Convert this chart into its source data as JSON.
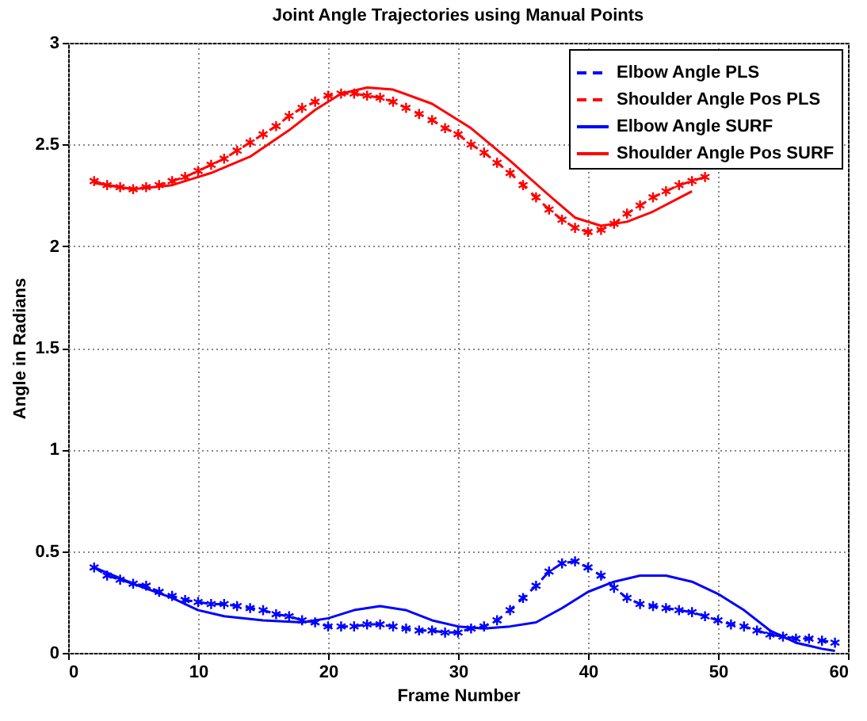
{
  "chart_data": {
    "type": "line",
    "title": "Joint Angle Trajectories using Manual Points",
    "xlabel": "Frame Number",
    "ylabel": "Angle in Radians",
    "xlim": [
      0,
      60
    ],
    "xticks": [
      0,
      10,
      20,
      30,
      40,
      50,
      60
    ],
    "ylim": [
      0,
      3
    ],
    "yticks": [
      0,
      0.5,
      1,
      1.5,
      2,
      2.5,
      3
    ],
    "grid": true,
    "legend": "top right",
    "series": [
      {
        "name": "Elbow Angle PLS",
        "color": "#0000ff",
        "line_style": "dashed",
        "marker": "cross",
        "x": [
          2,
          3,
          4,
          5,
          6,
          7,
          8,
          9,
          10,
          11,
          12,
          13,
          14,
          15,
          16,
          17,
          18,
          19,
          20,
          21,
          22,
          23,
          24,
          25,
          26,
          27,
          28,
          29,
          30,
          31,
          32,
          33,
          34,
          35,
          36,
          37,
          38,
          39,
          40,
          41,
          42,
          43,
          44,
          45,
          46,
          47,
          48,
          49,
          50,
          51,
          52,
          53,
          54,
          55,
          56,
          57,
          58,
          59
        ],
        "values": [
          0.42,
          0.38,
          0.36,
          0.34,
          0.33,
          0.3,
          0.28,
          0.26,
          0.25,
          0.24,
          0.24,
          0.23,
          0.22,
          0.21,
          0.19,
          0.18,
          0.16,
          0.15,
          0.13,
          0.13,
          0.13,
          0.14,
          0.14,
          0.13,
          0.12,
          0.11,
          0.11,
          0.1,
          0.1,
          0.12,
          0.13,
          0.16,
          0.21,
          0.27,
          0.33,
          0.4,
          0.44,
          0.45,
          0.42,
          0.38,
          0.32,
          0.27,
          0.24,
          0.23,
          0.22,
          0.21,
          0.2,
          0.18,
          0.16,
          0.14,
          0.13,
          0.11,
          0.09,
          0.08,
          0.07,
          0.07,
          0.06,
          0.05
        ]
      },
      {
        "name": "Shoulder Angle Pos PLS",
        "color": "#ff0000",
        "line_style": "dashed",
        "marker": "cross",
        "x": [
          2,
          3,
          4,
          5,
          6,
          7,
          8,
          9,
          10,
          11,
          12,
          13,
          14,
          15,
          16,
          17,
          18,
          19,
          20,
          21,
          22,
          23,
          24,
          25,
          26,
          27,
          28,
          29,
          30,
          31,
          32,
          33,
          34,
          35,
          36,
          37,
          38,
          39,
          40,
          41,
          42,
          43,
          44,
          45,
          46,
          47,
          48,
          49
        ],
        "values": [
          2.32,
          2.3,
          2.29,
          2.28,
          2.29,
          2.3,
          2.32,
          2.34,
          2.37,
          2.4,
          2.43,
          2.47,
          2.51,
          2.55,
          2.59,
          2.64,
          2.68,
          2.71,
          2.74,
          2.75,
          2.75,
          2.74,
          2.73,
          2.71,
          2.68,
          2.65,
          2.62,
          2.58,
          2.55,
          2.5,
          2.46,
          2.41,
          2.36,
          2.3,
          2.24,
          2.18,
          2.13,
          2.09,
          2.07,
          2.08,
          2.11,
          2.16,
          2.2,
          2.24,
          2.27,
          2.3,
          2.32,
          2.34
        ]
      },
      {
        "name": "Elbow Angle SURF",
        "color": "#0000ff",
        "line_style": "solid",
        "marker": "none",
        "x": [
          2,
          5,
          8,
          10,
          12,
          15,
          18,
          20,
          22,
          24,
          26,
          28,
          30,
          32,
          34,
          36,
          38,
          40,
          42,
          44,
          46,
          48,
          50,
          52,
          54,
          56,
          58,
          59
        ],
        "values": [
          0.42,
          0.34,
          0.27,
          0.21,
          0.18,
          0.16,
          0.15,
          0.17,
          0.21,
          0.23,
          0.21,
          0.16,
          0.13,
          0.12,
          0.13,
          0.15,
          0.22,
          0.3,
          0.35,
          0.38,
          0.38,
          0.35,
          0.29,
          0.21,
          0.11,
          0.05,
          0.02,
          0.01
        ]
      },
      {
        "name": "Shoulder Angle Pos SURF",
        "color": "#ff0000",
        "line_style": "solid",
        "marker": "none",
        "x": [
          2,
          5,
          8,
          11,
          14,
          17,
          19,
          21,
          23,
          25,
          28,
          31,
          34,
          37,
          39,
          41,
          43,
          45,
          48
        ],
        "values": [
          2.31,
          2.28,
          2.3,
          2.36,
          2.44,
          2.57,
          2.67,
          2.75,
          2.78,
          2.77,
          2.7,
          2.58,
          2.42,
          2.25,
          2.14,
          2.1,
          2.12,
          2.17,
          2.27
        ]
      }
    ]
  }
}
